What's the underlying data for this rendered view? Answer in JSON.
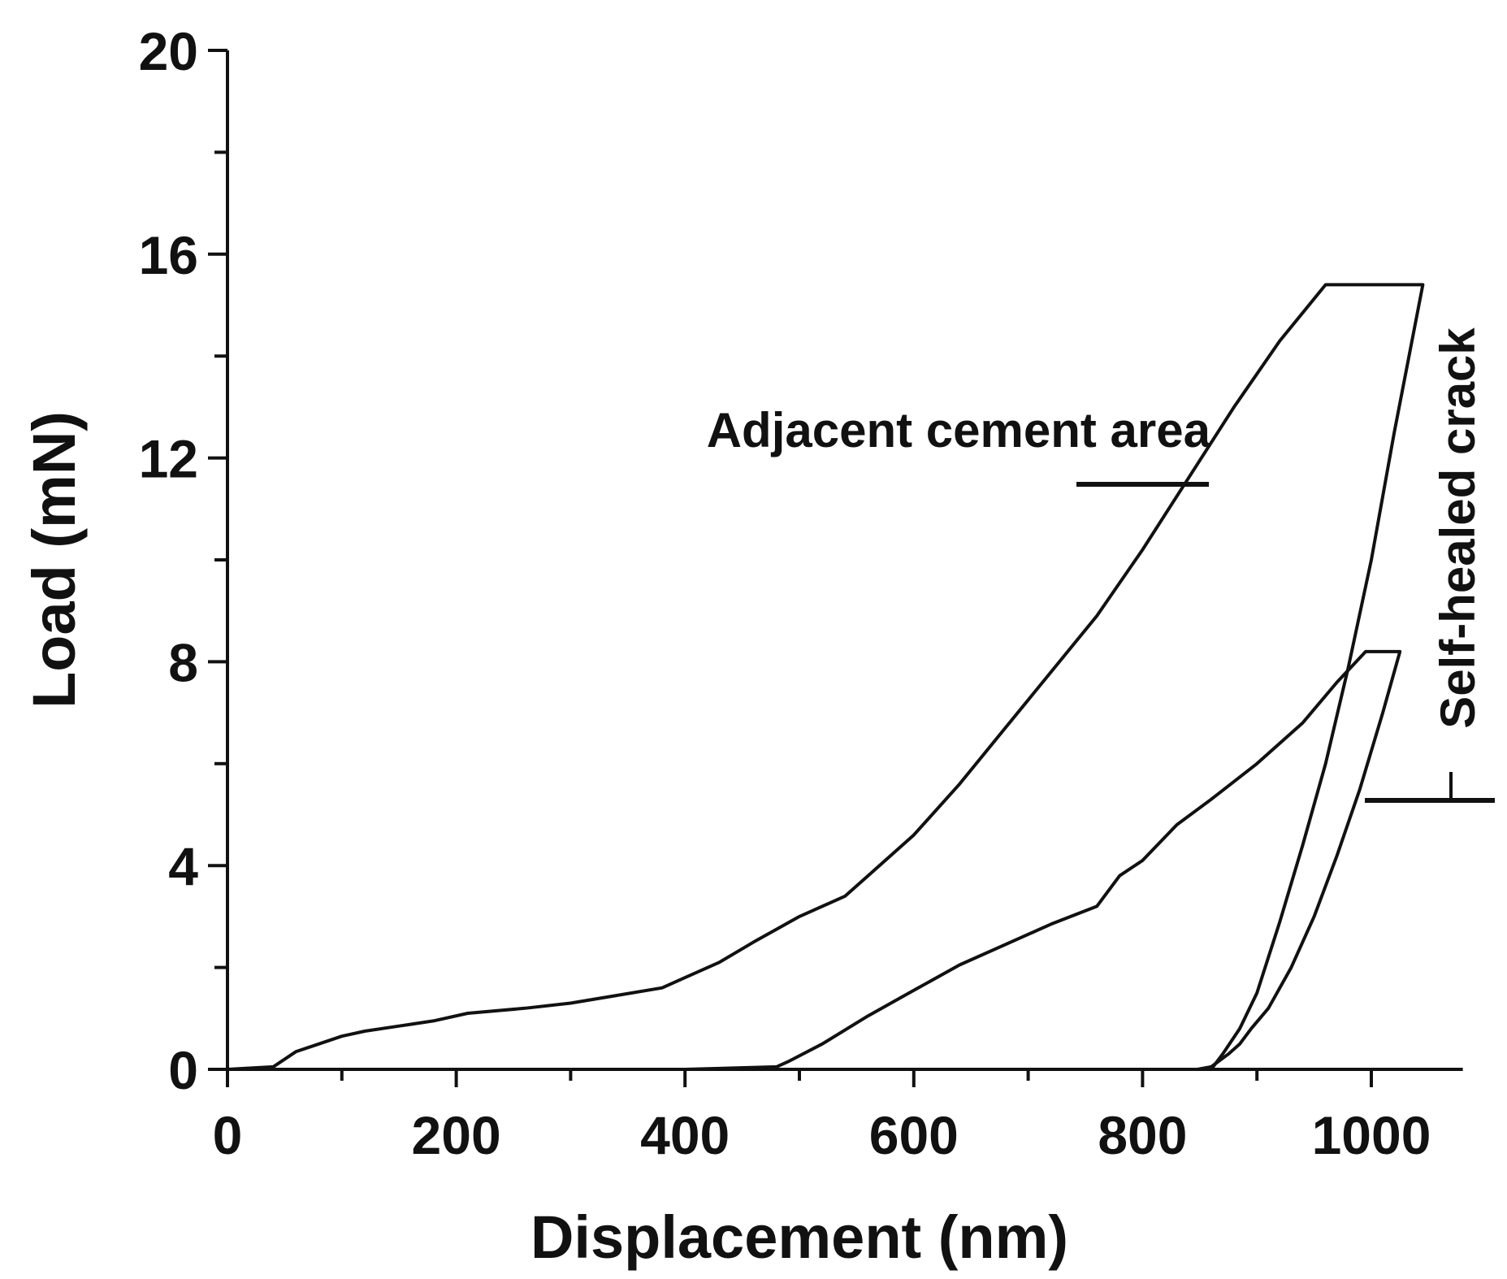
{
  "chart_data": {
    "type": "line",
    "xlabel": "Displacement (nm)",
    "ylabel": "Load (mN)",
    "xlim": [
      0,
      1080
    ],
    "ylim": [
      0,
      20
    ],
    "x_ticks": [
      0,
      200,
      400,
      600,
      800,
      1000
    ],
    "y_ticks": [
      0,
      4,
      8,
      12,
      16,
      20
    ],
    "x_minor_step": 100,
    "y_minor_step": 2,
    "grid": false,
    "line_color": "#111111",
    "series": [
      {
        "name": "Adjacent cement area",
        "x": [
          0,
          40,
          60,
          80,
          100,
          120,
          150,
          180,
          210,
          260,
          300,
          340,
          380,
          400,
          430,
          460,
          500,
          540,
          560,
          600,
          640,
          680,
          720,
          760,
          800,
          840,
          880,
          920,
          960,
          995,
          1045,
          1020,
          1000,
          980,
          960,
          940,
          920,
          900,
          885,
          870,
          860
        ],
        "y": [
          0,
          0.05,
          0.35,
          0.5,
          0.65,
          0.75,
          0.85,
          0.95,
          1.1,
          1.2,
          1.3,
          1.45,
          1.6,
          1.8,
          2.1,
          2.5,
          3.0,
          3.4,
          3.8,
          4.6,
          5.6,
          6.7,
          7.8,
          8.9,
          10.2,
          11.6,
          13.0,
          14.3,
          15.4,
          15.4,
          15.4,
          12.5,
          10.0,
          7.9,
          6.0,
          4.4,
          2.9,
          1.5,
          0.8,
          0.3,
          0
        ]
      },
      {
        "name": "Self-healed crack",
        "x": [
          0,
          100,
          200,
          300,
          400,
          480,
          490,
          520,
          560,
          600,
          640,
          680,
          720,
          760,
          780,
          800,
          830,
          860,
          900,
          940,
          970,
          995,
          1025,
          1010,
          990,
          970,
          950,
          930,
          910,
          895,
          885,
          875,
          860,
          848
        ],
        "y": [
          0,
          0,
          0,
          0,
          0,
          0.05,
          0.15,
          0.5,
          1.05,
          1.55,
          2.05,
          2.45,
          2.85,
          3.2,
          3.8,
          4.1,
          4.8,
          5.3,
          6.0,
          6.8,
          7.6,
          8.2,
          8.2,
          7.0,
          5.5,
          4.2,
          3.0,
          2.0,
          1.2,
          0.8,
          0.5,
          0.3,
          0.05,
          0
        ]
      }
    ],
    "annotations": [
      {
        "text": "Adjacent cement area",
        "series": "Adjacent cement area"
      },
      {
        "text": "Self-healed crack",
        "series": "Self-healed crack"
      }
    ]
  }
}
